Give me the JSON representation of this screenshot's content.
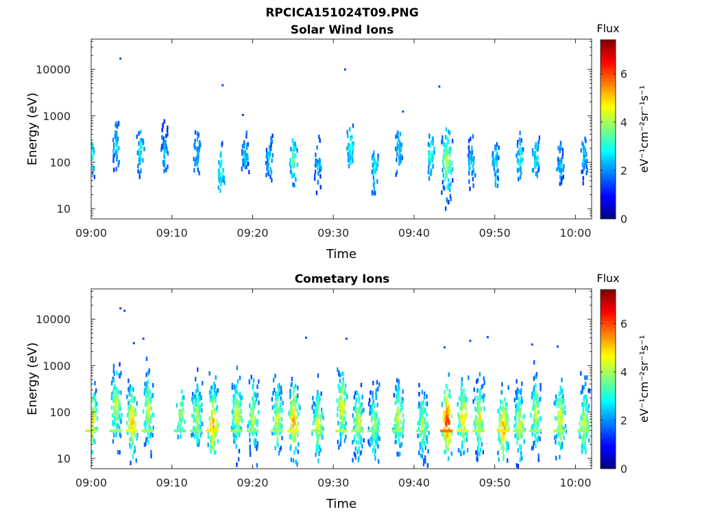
{
  "figure_title": "RPCICA151024T09.PNG",
  "colormap": "jet",
  "chart_data": [
    {
      "type": "heatmap",
      "title": "Solar Wind Ions",
      "xlabel": "Time",
      "ylabel": "Energy (eV)",
      "x_ticks": [
        "09:00",
        "09:10",
        "09:20",
        "09:30",
        "09:40",
        "09:50",
        "10:00"
      ],
      "y_ticks": [
        "10",
        "100",
        "1000",
        "10000"
      ],
      "yscale": "log",
      "ylim": [
        6,
        45000
      ],
      "xlim": [
        "09:00",
        "10:02"
      ],
      "colorbar": {
        "title": "Flux",
        "label": "eV⁻¹cm⁻²sr⁻¹s⁻¹",
        "ticks": [
          "0",
          "2",
          "4",
          "6"
        ],
        "range": [
          0,
          7.4
        ]
      },
      "bursts": [
        {
          "t": "09:00",
          "e": 150,
          "flux": 3.0
        },
        {
          "t": "09:03",
          "e": 250,
          "flux": 2.6
        },
        {
          "t": "09:06",
          "e": 200,
          "flux": 2.8
        },
        {
          "t": "09:09",
          "e": 180,
          "flux": 2.4
        },
        {
          "t": "09:13",
          "e": 180,
          "flux": 2.5
        },
        {
          "t": "09:16",
          "e": 70,
          "flux": 3.2
        },
        {
          "t": "09:19",
          "e": 150,
          "flux": 2.5
        },
        {
          "t": "09:22",
          "e": 130,
          "flux": 2.6
        },
        {
          "t": "09:25",
          "e": 120,
          "flux": 3.4
        },
        {
          "t": "09:28",
          "e": 100,
          "flux": 2.4
        },
        {
          "t": "09:32",
          "e": 250,
          "flux": 3.0
        },
        {
          "t": "09:35",
          "e": 80,
          "flux": 2.8
        },
        {
          "t": "09:38",
          "e": 200,
          "flux": 2.7
        },
        {
          "t": "09:42",
          "e": 150,
          "flux": 3.2
        },
        {
          "t": "09:44",
          "e": 120,
          "flux": 4.4
        },
        {
          "t": "09:47",
          "e": 100,
          "flux": 2.6
        },
        {
          "t": "09:50",
          "e": 100,
          "flux": 2.7
        },
        {
          "t": "09:53",
          "e": 120,
          "flux": 3.0
        },
        {
          "t": "09:55",
          "e": 130,
          "flux": 2.8
        },
        {
          "t": "09:58",
          "e": 100,
          "flux": 2.5
        },
        {
          "t": "10:01",
          "e": 130,
          "flux": 2.5
        }
      ],
      "outliers": [
        {
          "t": "09:03:30",
          "e": 18000
        },
        {
          "t": "09:16:10",
          "e": 4800
        },
        {
          "t": "09:18:40",
          "e": 1100
        },
        {
          "t": "09:31:20",
          "e": 10500
        },
        {
          "t": "09:38:30",
          "e": 1300
        },
        {
          "t": "09:43:00",
          "e": 4500
        }
      ]
    },
    {
      "type": "heatmap",
      "title": "Cometary Ions",
      "xlabel": "Time",
      "ylabel": "Energy (eV)",
      "x_ticks": [
        "09:00",
        "09:10",
        "09:20",
        "09:30",
        "09:40",
        "09:50",
        "10:00"
      ],
      "y_ticks": [
        "10",
        "100",
        "1000",
        "10000"
      ],
      "yscale": "log",
      "ylim": [
        6,
        45000
      ],
      "xlim": [
        "09:00",
        "10:02"
      ],
      "colorbar": {
        "title": "Flux",
        "label": "eV⁻¹cm⁻²sr⁻¹s⁻¹",
        "ticks": [
          "0",
          "2",
          "4",
          "6"
        ],
        "range": [
          0,
          7.4
        ]
      },
      "bursts": [
        {
          "t": "09:00",
          "e": 80,
          "flux": 5.0
        },
        {
          "t": "09:03",
          "e": 150,
          "flux": 4.6
        },
        {
          "t": "09:05",
          "e": 70,
          "flux": 5.3
        },
        {
          "t": "09:07",
          "e": 120,
          "flux": 4.7
        },
        {
          "t": "09:11",
          "e": 100,
          "flux": 4.0
        },
        {
          "t": "09:13",
          "e": 90,
          "flux": 4.3
        },
        {
          "t": "09:15",
          "e": 60,
          "flux": 5.6
        },
        {
          "t": "09:18",
          "e": 100,
          "flux": 4.6
        },
        {
          "t": "09:20",
          "e": 80,
          "flux": 4.4
        },
        {
          "t": "09:23",
          "e": 80,
          "flux": 4.6
        },
        {
          "t": "09:25",
          "e": 70,
          "flux": 5.5
        },
        {
          "t": "09:28",
          "e": 60,
          "flux": 4.6
        },
        {
          "t": "09:31",
          "e": 150,
          "flux": 5.0
        },
        {
          "t": "09:33",
          "e": 70,
          "flux": 4.6
        },
        {
          "t": "09:35",
          "e": 60,
          "flux": 4.2
        },
        {
          "t": "09:38",
          "e": 80,
          "flux": 4.6
        },
        {
          "t": "09:41",
          "e": 60,
          "flux": 4.4
        },
        {
          "t": "09:44",
          "e": 70,
          "flux": 6.6
        },
        {
          "t": "09:46",
          "e": 90,
          "flux": 5.2
        },
        {
          "t": "09:48",
          "e": 80,
          "flux": 4.8
        },
        {
          "t": "09:51",
          "e": 50,
          "flux": 5.6
        },
        {
          "t": "09:53",
          "e": 60,
          "flux": 4.6
        },
        {
          "t": "09:55",
          "e": 100,
          "flux": 4.6
        },
        {
          "t": "09:58",
          "e": 80,
          "flux": 4.8
        },
        {
          "t": "10:01",
          "e": 60,
          "flux": 4.6
        }
      ],
      "outliers": [
        {
          "t": "09:03:30",
          "e": 18000
        },
        {
          "t": "09:04:00",
          "e": 16000
        },
        {
          "t": "09:05:10",
          "e": 3200
        },
        {
          "t": "09:06:20",
          "e": 4000
        },
        {
          "t": "09:26:30",
          "e": 4200
        },
        {
          "t": "09:31:30",
          "e": 4000
        },
        {
          "t": "09:43:40",
          "e": 2600
        },
        {
          "t": "09:46:50",
          "e": 3600
        },
        {
          "t": "09:49:00",
          "e": 4300
        },
        {
          "t": "09:54:30",
          "e": 3000
        },
        {
          "t": "09:57:40",
          "e": 2700
        }
      ]
    }
  ]
}
